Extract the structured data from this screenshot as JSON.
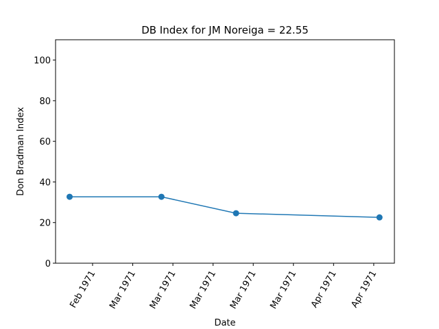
{
  "chart_data": {
    "type": "line",
    "title": "DB Index for JM Noreiga = 22.55",
    "x_label": "Date",
    "y_label": "Don Bradman Index",
    "x": [
      -4,
      12,
      25,
      50
    ],
    "series": [
      {
        "name": "DB Index",
        "color": "#1f77b4",
        "values": [
          32.7,
          32.7,
          24.6,
          22.55
        ]
      }
    ],
    "xlim": [
      -6.45,
      52.6
    ],
    "xticks": [
      {
        "value": 0,
        "label": "Feb 1971"
      },
      {
        "value": 7,
        "label": "Mar 1971"
      },
      {
        "value": 14,
        "label": "Mar 1971"
      },
      {
        "value": 21,
        "label": "Mar 1971"
      },
      {
        "value": 28,
        "label": "Mar 1971"
      },
      {
        "value": 35,
        "label": "Mar 1971"
      },
      {
        "value": 42,
        "label": "Apr 1971"
      },
      {
        "value": 49,
        "label": "Apr 1971"
      }
    ],
    "ylim": [
      0,
      110
    ],
    "yticks": [
      0,
      20,
      40,
      60,
      80,
      100
    ],
    "grid": false
  }
}
